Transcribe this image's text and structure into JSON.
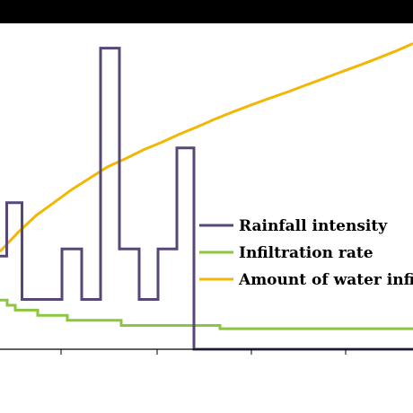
{
  "chart_data": {
    "type": "line",
    "title": "",
    "xlabel": "",
    "ylabel": "",
    "grid": false,
    "legend_position": "center-right",
    "series": [
      {
        "name": "Rainfall intensity",
        "color": "#574778",
        "x": [
          0,
          7.5,
          7.5,
          24.5,
          24.5,
          69,
          69,
          91,
          91,
          112,
          112,
          133,
          133,
          155,
          155,
          176,
          176,
          197,
          197,
          216,
          216,
          460
        ],
        "y": [
          0.286,
          0.286,
          0.45,
          0.45,
          0.153,
          0.153,
          0.308,
          0.308,
          0.153,
          0.153,
          0.924,
          0.924,
          0.308,
          0.308,
          0.153,
          0.153,
          0.308,
          0.308,
          0.618,
          0.618,
          0.0,
          0.0
        ]
      },
      {
        "name": "Infiltration rate",
        "color": "#8cc63f",
        "x": [
          0,
          8,
          8,
          17,
          17,
          42,
          42,
          75,
          75,
          135,
          135,
          245,
          245,
          460
        ],
        "y": [
          0.151,
          0.151,
          0.135,
          0.135,
          0.12,
          0.12,
          0.104,
          0.104,
          0.089,
          0.089,
          0.073,
          0.073,
          0.063,
          0.063
        ]
      },
      {
        "name": "Amount of water infil",
        "color": "#f2b705",
        "x": [
          0,
          20,
          40,
          60,
          80,
          100,
          120,
          140,
          160,
          180,
          200,
          220,
          240,
          260,
          280,
          300,
          320,
          340,
          360,
          380,
          400,
          420,
          440,
          460
        ],
        "y": [
          0.3,
          0.358,
          0.41,
          0.45,
          0.49,
          0.525,
          0.56,
          0.585,
          0.612,
          0.635,
          0.66,
          0.683,
          0.707,
          0.729,
          0.75,
          0.77,
          0.789,
          0.81,
          0.83,
          0.851,
          0.871,
          0.892,
          0.914,
          0.938
        ]
      }
    ],
    "ylim": [
      0,
      1
    ],
    "xlim": [
      0,
      460
    ]
  }
}
